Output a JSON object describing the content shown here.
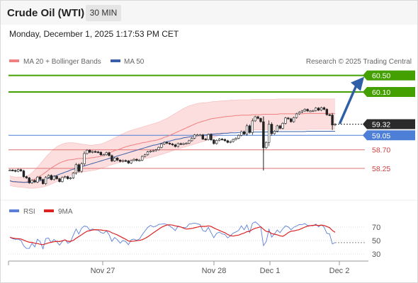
{
  "header": {
    "title": "Crude Oil (WTI)",
    "timeframe": "30 MIN",
    "datetime": "Monday, December 1, 2025 1:17:53 PM CET"
  },
  "legend": {
    "ma20": "MA 20 + Bollinger Bands",
    "ma50": "MA 50",
    "rsi": "RSI",
    "ma9": "9MA",
    "credit": "Research © 2025 Trading Central"
  },
  "colors": {
    "resistance": "#44a000",
    "support": "#e07070",
    "pivot": "#4d7fd6",
    "current": "#2b2b2b",
    "ma20": "#f08080",
    "ma50": "#3a5fa8",
    "bollinger_fill": "#fcdada",
    "candle": "#222222",
    "arrow": "#2f5fa6",
    "rsi_line": "#5b7fd8",
    "rsi_ma": "#dd2222"
  },
  "chart_data": [
    {
      "type": "candlestick",
      "title": "Crude Oil (WTI)",
      "timeframe": "30 MIN",
      "x_ticks": [
        "Nov 27",
        "Nov 28",
        "Dec 1",
        "Dec 2"
      ],
      "levels": [
        {
          "label": "60.50",
          "value": 60.5,
          "kind": "resistance"
        },
        {
          "label": "60.10",
          "value": 60.1,
          "kind": "resistance"
        },
        {
          "label": "59.32",
          "value": 59.32,
          "kind": "current"
        },
        {
          "label": "59.05",
          "value": 59.05,
          "kind": "pivot"
        },
        {
          "label": "58.70",
          "value": 58.7,
          "kind": "support"
        },
        {
          "label": "58.25",
          "value": 58.25,
          "kind": "support"
        }
      ],
      "close": [
        58.21,
        58.2,
        58.18,
        58.22,
        58.19,
        58.05,
        58.02,
        57.9,
        57.96,
        57.92,
        58.04,
        57.98,
        57.88,
        58.03,
        58.08,
        57.98,
        58.06,
        58.0,
        57.93,
        58.03,
        58.05,
        58.0,
        58.02,
        58.14,
        58.34,
        58.18,
        58.36,
        58.61,
        58.69,
        58.64,
        58.66,
        58.65,
        58.64,
        58.58,
        58.58,
        58.63,
        58.56,
        58.43,
        58.5,
        58.45,
        58.42,
        58.44,
        58.43,
        58.38,
        58.44,
        58.47,
        58.44,
        58.45,
        58.54,
        58.58,
        58.65,
        58.67,
        58.68,
        58.7,
        58.76,
        58.84,
        58.88,
        58.86,
        58.84,
        58.82,
        58.78,
        58.85,
        58.84,
        58.85,
        58.86,
        58.92,
        58.98,
        59.06,
        59.06,
        59.06,
        58.96,
        58.95,
        59.07,
        58.94,
        58.85,
        58.93,
        58.96,
        58.95,
        58.92,
        58.88,
        58.9,
        58.95,
        58.98,
        59.05,
        59.14,
        59.08,
        59.28,
        59.12,
        59.4,
        59.5,
        59.46,
        59.38,
        58.75,
        58.88,
        59.32,
        59.09,
        59.15,
        59.28,
        59.22,
        59.34,
        59.47,
        59.45,
        59.38,
        59.48,
        59.57,
        59.61,
        59.64,
        59.68,
        59.64,
        59.64,
        59.65,
        59.71,
        59.66,
        59.72,
        59.68,
        59.55,
        59.54,
        59.3,
        59.32
      ],
      "ma20": [
        57.95,
        57.93,
        57.92,
        57.92,
        57.91,
        57.91,
        57.92,
        57.93,
        57.96,
        57.99,
        58.03,
        58.07,
        58.11,
        58.16,
        58.21,
        58.26,
        58.3,
        58.34,
        58.38,
        58.41,
        58.43,
        58.45,
        58.46,
        58.47,
        58.48,
        58.49,
        58.49,
        58.49,
        58.49,
        58.5,
        58.51,
        58.52,
        58.53,
        58.55,
        58.57,
        58.6,
        58.62,
        58.65,
        58.68,
        58.7,
        58.72,
        58.75,
        58.77,
        58.79,
        58.81,
        58.82,
        58.84,
        58.85,
        58.87,
        58.88,
        58.89,
        58.91,
        58.92,
        58.93,
        58.95,
        58.97,
        59.0,
        59.02,
        59.05,
        59.08,
        59.11,
        59.14,
        59.17,
        59.2,
        59.23,
        59.26,
        59.29,
        59.32,
        59.35,
        59.37,
        59.39,
        59.41,
        59.43,
        59.45,
        59.46,
        59.47,
        59.48,
        59.49,
        59.5,
        59.51,
        59.51,
        59.52,
        59.53,
        59.53,
        59.54,
        59.54,
        59.54,
        59.54,
        59.55,
        59.55,
        59.55,
        59.55,
        59.56,
        59.56,
        59.56,
        59.56,
        59.56,
        59.56,
        59.57,
        59.57,
        59.57,
        59.57,
        59.57,
        59.57,
        59.57,
        59.57,
        59.57,
        59.58,
        59.58,
        59.58,
        59.58,
        59.58,
        59.58,
        59.58,
        59.58,
        59.58,
        59.58,
        59.58,
        59.58
      ],
      "ma50": [
        57.95,
        57.93,
        57.93,
        57.92,
        57.92,
        57.91,
        57.91,
        57.92,
        57.92,
        57.93,
        57.94,
        57.95,
        57.97,
        57.99,
        58.01,
        58.03,
        58.06,
        58.08,
        58.11,
        58.13,
        58.16,
        58.18,
        58.21,
        58.23,
        58.25,
        58.27,
        58.29,
        58.31,
        58.33,
        58.35,
        58.37,
        58.39,
        58.41,
        58.43,
        58.45,
        58.47,
        58.49,
        58.51,
        58.53,
        58.55,
        58.57,
        58.59,
        58.61,
        58.63,
        58.65,
        58.67,
        58.69,
        58.71,
        58.73,
        58.75,
        58.77,
        58.79,
        58.81,
        58.82,
        58.84,
        58.86,
        58.88,
        58.9,
        58.91,
        58.93,
        58.95,
        58.96,
        58.97,
        58.99,
        59.0,
        59.01,
        59.02,
        59.03,
        59.04,
        59.05,
        59.06,
        59.06,
        59.07,
        59.08,
        59.08,
        59.09,
        59.09,
        59.1,
        59.1,
        59.1,
        59.11,
        59.11,
        59.11,
        59.12,
        59.12,
        59.12,
        59.12,
        59.13,
        59.13,
        59.13,
        59.13,
        59.13,
        59.13,
        59.13,
        59.14,
        59.14,
        59.14,
        59.14,
        59.14,
        59.14,
        59.14,
        59.14,
        59.14,
        59.14,
        59.14,
        59.14,
        59.14,
        59.14,
        59.15,
        59.15,
        59.15,
        59.15,
        59.15,
        59.15,
        59.15,
        59.15,
        59.15,
        59.15,
        59.15
      ],
      "bb_upper": [
        58.07,
        58.05,
        58.04,
        58.04,
        58.04,
        58.04,
        58.06,
        58.09,
        58.14,
        58.21,
        58.28,
        58.36,
        58.44,
        58.52,
        58.59,
        58.66,
        58.72,
        58.77,
        58.81,
        58.84,
        58.86,
        58.87,
        58.87,
        58.87,
        58.86,
        58.85,
        58.84,
        58.83,
        58.82,
        58.81,
        58.81,
        58.82,
        58.83,
        58.84,
        58.86,
        58.89,
        58.92,
        58.95,
        58.99,
        59.02,
        59.06,
        59.09,
        59.12,
        59.15,
        59.17,
        59.19,
        59.21,
        59.23,
        59.25,
        59.27,
        59.29,
        59.31,
        59.33,
        59.35,
        59.37,
        59.4,
        59.43,
        59.46,
        59.5,
        59.54,
        59.58,
        59.62,
        59.66,
        59.7,
        59.73,
        59.76,
        59.78,
        59.8,
        59.82,
        59.83,
        59.84,
        59.84,
        59.85,
        59.86,
        59.87,
        59.87,
        59.88,
        59.88,
        59.89,
        59.89,
        59.9,
        59.9,
        59.9,
        59.91,
        59.91,
        59.91,
        59.91,
        59.91,
        59.92,
        59.92,
        59.92,
        59.92,
        59.92,
        59.92,
        59.92,
        59.92,
        59.92,
        59.93,
        59.93,
        59.93,
        59.93,
        59.93,
        59.93,
        59.93,
        59.93,
        59.93,
        59.93,
        59.93,
        59.93,
        59.93,
        59.93,
        59.93,
        59.93,
        59.93,
        59.93,
        59.93,
        59.93,
        59.93,
        59.93
      ],
      "bb_lower": [
        57.84,
        57.82,
        57.81,
        57.8,
        57.8,
        57.79,
        57.78,
        57.77,
        57.77,
        57.77,
        57.78,
        57.79,
        57.8,
        57.82,
        57.84,
        57.87,
        57.9,
        57.93,
        57.96,
        58.0,
        58.03,
        58.06,
        58.08,
        58.11,
        58.13,
        58.15,
        58.16,
        58.17,
        58.18,
        58.19,
        58.2,
        58.21,
        58.23,
        58.25,
        58.27,
        58.29,
        58.32,
        58.34,
        58.36,
        58.38,
        58.4,
        58.41,
        58.42,
        58.43,
        58.44,
        58.45,
        58.46,
        58.47,
        58.48,
        58.49,
        58.5,
        58.51,
        58.53,
        58.55,
        58.57,
        58.59,
        58.61,
        58.63,
        58.65,
        58.68,
        58.7,
        58.72,
        58.74,
        58.76,
        58.78,
        58.8,
        58.82,
        58.84,
        58.86,
        58.88,
        58.9,
        58.92,
        58.95,
        58.97,
        59.0,
        59.03,
        59.05,
        59.08,
        59.1,
        59.12,
        59.13,
        59.14,
        59.15,
        59.16,
        59.17,
        59.17,
        59.17,
        59.18,
        59.18,
        59.18,
        59.18,
        59.18,
        59.18,
        59.19,
        59.19,
        59.19,
        59.19,
        59.19,
        59.19,
        59.19,
        59.19,
        59.19,
        59.19,
        59.19,
        59.19,
        59.19,
        59.19,
        59.19,
        59.19,
        59.2,
        59.2,
        59.2,
        59.2,
        59.2,
        59.2,
        59.2,
        59.2,
        59.2,
        59.2
      ],
      "projection": {
        "from": 59.32,
        "to": 60.5
      }
    },
    {
      "type": "line",
      "title": "RSI",
      "y_ticks": [
        70,
        50,
        30
      ],
      "ylim": [
        20,
        80
      ],
      "series": [
        {
          "name": "RSI",
          "values": [
            54.8,
            52.7,
            51.8,
            52.0,
            50.2,
            42.3,
            38.3,
            38.2,
            45.9,
            40.6,
            51.9,
            48.1,
            37.7,
            53.0,
            53.8,
            46.9,
            51.6,
            48.2,
            43.2,
            48.6,
            51.4,
            46.0,
            48.1,
            58.1,
            67.3,
            59.7,
            68.3,
            71.6,
            70.7,
            65.5,
            67.2,
            65.7,
            65.4,
            62.0,
            60.6,
            64.5,
            58.7,
            48.8,
            54.5,
            51.3,
            46.1,
            50.1,
            48.5,
            43.9,
            51.2,
            52.1,
            50.4,
            52.2,
            58.6,
            64.2,
            69.5,
            72.6,
            70.2,
            71.5,
            74.1,
            74.4,
            75.1,
            73.7,
            71.6,
            68.5,
            64.8,
            71.5,
            70.1,
            69.3,
            69.4,
            74.4,
            75.2,
            76.0,
            74.9,
            73.8,
            64.8,
            63.4,
            69.8,
            61.5,
            54.2,
            60.6,
            62.5,
            59.9,
            59.1,
            54.0,
            56.8,
            61.1,
            62.8,
            65.2,
            71.8,
            66.0,
            73.3,
            62.0,
            75.6,
            77.9,
            74.6,
            70.3,
            42.4,
            48.6,
            66.8,
            55.2,
            59.9,
            65.6,
            61.8,
            67.4,
            71.8,
            70.3,
            66.1,
            69.9,
            71.6,
            73.7,
            73.6,
            75.4,
            72.3,
            72.3,
            71.9,
            74.5,
            70.6,
            73.4,
            70.1,
            60.8,
            59.7,
            45.1,
            46.9
          ]
        },
        {
          "name": "9MA",
          "values": [
            54.8,
            53.7,
            53.1,
            52.8,
            52.3,
            50.6,
            48.8,
            47.5,
            47.4,
            46.0,
            45.6,
            44.4,
            43.9,
            45.2,
            46.5,
            47.4,
            48.3,
            48.8,
            48.4,
            49.7,
            51.0,
            48.8,
            48.8,
            50.3,
            53.4,
            55.9,
            58.5,
            61.3,
            63.9,
            64.7,
            65.7,
            66.2,
            66.0,
            65.8,
            65.1,
            64.7,
            63.8,
            61.6,
            60.0,
            58.3,
            56.1,
            54.0,
            51.9,
            49.4,
            48.8,
            49.2,
            49.8,
            50.2,
            51.3,
            53.2,
            55.6,
            58.4,
            61.5,
            64.2,
            67.0,
            69.7,
            71.7,
            73.2,
            73.5,
            72.9,
            71.9,
            71.1,
            70.2,
            68.5,
            67.1,
            67.5,
            68.0,
            68.9,
            69.9,
            70.9,
            71.1,
            71.1,
            71.9,
            71.0,
            68.7,
            66.8,
            65.2,
            63.2,
            61.7,
            59.1,
            57.3,
            56.6,
            57.6,
            58.1,
            59.8,
            61.1,
            63.2,
            63.8,
            66.4,
            68.2,
            69.3,
            70.4,
            66.7,
            63.6,
            63.0,
            60.3,
            59.5,
            58.5,
            57.1,
            56.3,
            58.6,
            61.9,
            63.9,
            64.3,
            65.4,
            66.2,
            68.1,
            70.0,
            71.5,
            72.2,
            72.6,
            73.0,
            72.2,
            73.0,
            72.4,
            70.8,
            69.2,
            65.1,
            62.2
          ]
        }
      ]
    }
  ]
}
